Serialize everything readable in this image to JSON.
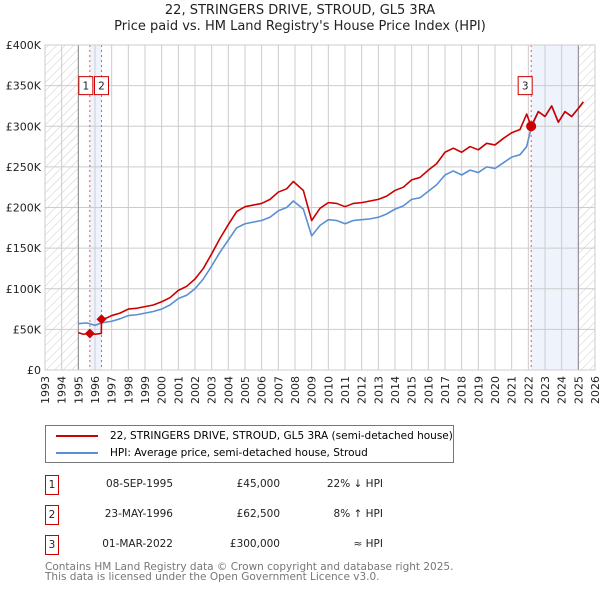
{
  "title": "22, STRINGERS DRIVE, STROUD, GL5 3RA",
  "subtitle": "Price paid vs. HM Land Registry's House Price Index (HPI)",
  "chart_data": {
    "type": "line",
    "xlim": [
      1993,
      2026
    ],
    "ylim": [
      0,
      400000
    ],
    "yticks": [
      {
        "v": 0,
        "label": "£0"
      },
      {
        "v": 50000,
        "label": "£50K"
      },
      {
        "v": 100000,
        "label": "£100K"
      },
      {
        "v": 150000,
        "label": "£150K"
      },
      {
        "v": 200000,
        "label": "£200K"
      },
      {
        "v": 250000,
        "label": "£250K"
      },
      {
        "v": 300000,
        "label": "£300K"
      },
      {
        "v": 350000,
        "label": "£350K"
      },
      {
        "v": 400000,
        "label": "£400K"
      }
    ],
    "xticks": [
      "1993",
      "1994",
      "1995",
      "1996",
      "1997",
      "1998",
      "1999",
      "2000",
      "2001",
      "2002",
      "2003",
      "2004",
      "2005",
      "2006",
      "2007",
      "2008",
      "2009",
      "2010",
      "2011",
      "2012",
      "2013",
      "2014",
      "2015",
      "2016",
      "2017",
      "2018",
      "2019",
      "2020",
      "2021",
      "2022",
      "2023",
      "2024",
      "2025",
      "2026"
    ],
    "data_start": 1995.0,
    "data_end": 2025.0,
    "series": [
      {
        "name": "22, STRINGERS DRIVE, STROUD, GL5 3RA (semi-detached house)",
        "color": "#cc0000",
        "points": [
          [
            1995.0,
            46000
          ],
          [
            1995.3,
            44000
          ],
          [
            1995.69,
            45000
          ],
          [
            1996.0,
            44000
          ],
          [
            1996.38,
            45000
          ],
          [
            1996.39,
            62500
          ],
          [
            1996.7,
            64000
          ],
          [
            1997,
            67000
          ],
          [
            1997.5,
            70000
          ],
          [
            1998,
            75000
          ],
          [
            1998.5,
            76000
          ],
          [
            1999,
            78000
          ],
          [
            1999.5,
            80000
          ],
          [
            2000,
            84000
          ],
          [
            2000.5,
            89000
          ],
          [
            2001,
            98000
          ],
          [
            2001.5,
            103000
          ],
          [
            2002,
            112000
          ],
          [
            2002.5,
            125000
          ],
          [
            2003,
            143000
          ],
          [
            2003.5,
            162000
          ],
          [
            2004,
            179000
          ],
          [
            2004.5,
            195000
          ],
          [
            2005,
            201000
          ],
          [
            2005.5,
            203000
          ],
          [
            2006,
            205000
          ],
          [
            2006.5,
            210000
          ],
          [
            2007,
            219000
          ],
          [
            2007.5,
            223000
          ],
          [
            2007.9,
            232000
          ],
          [
            2008.5,
            221000
          ],
          [
            2009,
            184000
          ],
          [
            2009.5,
            199000
          ],
          [
            2010,
            206000
          ],
          [
            2010.5,
            205000
          ],
          [
            2011,
            201000
          ],
          [
            2011.5,
            205000
          ],
          [
            2012,
            206000
          ],
          [
            2012.5,
            208000
          ],
          [
            2013,
            210000
          ],
          [
            2013.5,
            214000
          ],
          [
            2014,
            221000
          ],
          [
            2014.5,
            225000
          ],
          [
            2015,
            234000
          ],
          [
            2015.5,
            237000
          ],
          [
            2016,
            246000
          ],
          [
            2016.5,
            254000
          ],
          [
            2017,
            268000
          ],
          [
            2017.5,
            273000
          ],
          [
            2018,
            268000
          ],
          [
            2018.5,
            275000
          ],
          [
            2019,
            271000
          ],
          [
            2019.5,
            279000
          ],
          [
            2020,
            277000
          ],
          [
            2020.5,
            285000
          ],
          [
            2021,
            292000
          ],
          [
            2021.5,
            296000
          ],
          [
            2021.9,
            315000
          ],
          [
            2022.17,
            300000
          ],
          [
            2022.6,
            318000
          ],
          [
            2023,
            312000
          ],
          [
            2023.4,
            325000
          ],
          [
            2023.8,
            305000
          ],
          [
            2024.2,
            318000
          ],
          [
            2024.6,
            312000
          ],
          [
            2025.0,
            322000
          ],
          [
            2025.3,
            330000
          ]
        ]
      },
      {
        "name": "HPI: Average price, semi-detached house, Stroud",
        "color": "#5b8fd4",
        "points": [
          [
            1995.0,
            57000
          ],
          [
            1995.5,
            58000
          ],
          [
            1996.0,
            55000
          ],
          [
            1996.4,
            58000
          ],
          [
            1997,
            60000
          ],
          [
            1997.5,
            63000
          ],
          [
            1998,
            67000
          ],
          [
            1998.5,
            68000
          ],
          [
            1999,
            70000
          ],
          [
            1999.5,
            72000
          ],
          [
            2000,
            75000
          ],
          [
            2000.5,
            80000
          ],
          [
            2001,
            88000
          ],
          [
            2001.5,
            92000
          ],
          [
            2002,
            100000
          ],
          [
            2002.5,
            112000
          ],
          [
            2003,
            128000
          ],
          [
            2003.5,
            145000
          ],
          [
            2004,
            160000
          ],
          [
            2004.5,
            175000
          ],
          [
            2005,
            180000
          ],
          [
            2005.5,
            182000
          ],
          [
            2006,
            184000
          ],
          [
            2006.5,
            188000
          ],
          [
            2007,
            196000
          ],
          [
            2007.5,
            200000
          ],
          [
            2007.9,
            208000
          ],
          [
            2008.5,
            198000
          ],
          [
            2009,
            165000
          ],
          [
            2009.5,
            178000
          ],
          [
            2010,
            185000
          ],
          [
            2010.5,
            184000
          ],
          [
            2011,
            180000
          ],
          [
            2011.5,
            184000
          ],
          [
            2012,
            185000
          ],
          [
            2012.5,
            186000
          ],
          [
            2013,
            188000
          ],
          [
            2013.5,
            192000
          ],
          [
            2014,
            198000
          ],
          [
            2014.5,
            202000
          ],
          [
            2015,
            210000
          ],
          [
            2015.5,
            212000
          ],
          [
            2016,
            220000
          ],
          [
            2016.5,
            228000
          ],
          [
            2017,
            240000
          ],
          [
            2017.5,
            245000
          ],
          [
            2018,
            240000
          ],
          [
            2018.5,
            246000
          ],
          [
            2019,
            243000
          ],
          [
            2019.5,
            250000
          ],
          [
            2020,
            248000
          ],
          [
            2020.5,
            255000
          ],
          [
            2021,
            262000
          ],
          [
            2021.5,
            265000
          ],
          [
            2021.9,
            275000
          ],
          [
            2022.17,
            298000
          ],
          [
            2022.6,
            318000
          ],
          [
            2023,
            312000
          ],
          [
            2023.4,
            325000
          ],
          [
            2023.8,
            305000
          ],
          [
            2024.2,
            318000
          ],
          [
            2024.6,
            312000
          ],
          [
            2025.0,
            322000
          ],
          [
            2025.3,
            330000
          ]
        ]
      }
    ],
    "sales": [
      {
        "id": "1",
        "date": "08-SEP-1995",
        "x": 1995.69,
        "price": 45000,
        "price_label": "£45,000",
        "hpi": "22% ↓ HPI"
      },
      {
        "id": "2",
        "date": "23-MAY-1996",
        "x": 1996.39,
        "price": 62500,
        "price_label": "£62,500",
        "hpi": "8% ↑ HPI"
      },
      {
        "id": "3",
        "date": "01-MAR-2022",
        "x": 2022.17,
        "price": 300000,
        "price_label": "£300,000",
        "hpi": "≈ HPI"
      }
    ]
  },
  "footer": [
    "Contains HM Land Registry data © Crown copyright and database right 2025.",
    "This data is licensed under the Open Government Licence v3.0."
  ]
}
